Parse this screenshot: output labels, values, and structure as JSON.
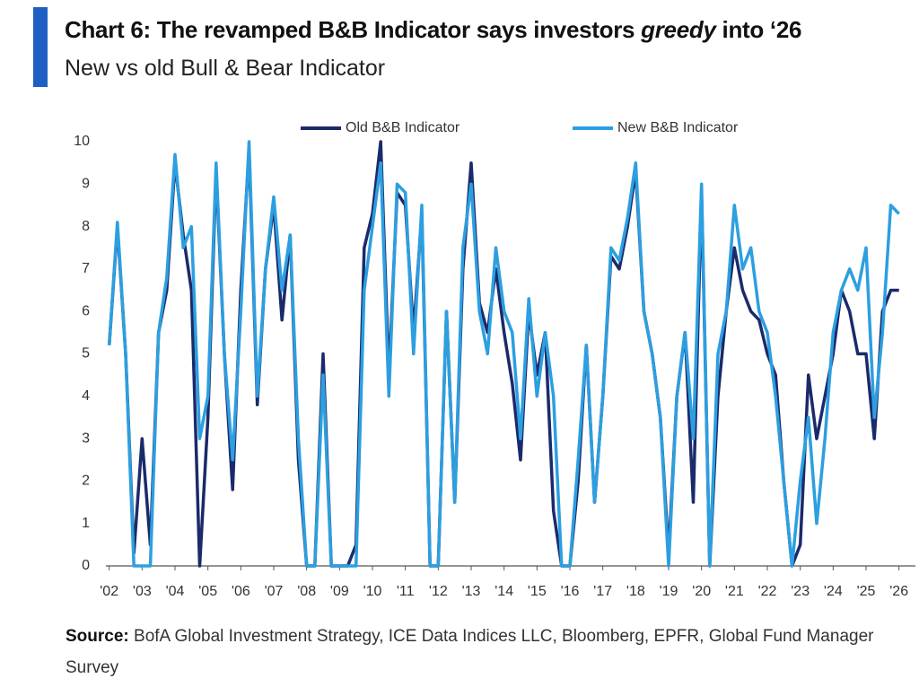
{
  "chart_data": {
    "type": "line",
    "title_parts": [
      "Chart 6: The revamped B&B Indicator says investors ",
      "greedy",
      " into ‘26"
    ],
    "subtitle": "New vs old Bull & Bear Indicator",
    "source_label": "Source:",
    "source": "BofA Global Investment Strategy, ICE Data Indices LLC, Bloomberg, EPFR, Global Fund Manager Survey",
    "x": [
      2002,
      2002.25,
      2002.5,
      2002.75,
      2003,
      2003.25,
      2003.5,
      2003.75,
      2004,
      2004.25,
      2004.5,
      2004.75,
      2005,
      2005.25,
      2005.5,
      2005.75,
      2006,
      2006.25,
      2006.5,
      2006.75,
      2007,
      2007.25,
      2007.5,
      2007.75,
      2008,
      2008.25,
      2008.5,
      2008.75,
      2009,
      2009.25,
      2009.5,
      2009.75,
      2010,
      2010.25,
      2010.5,
      2010.75,
      2011,
      2011.25,
      2011.5,
      2011.75,
      2012,
      2012.25,
      2012.5,
      2012.75,
      2013,
      2013.25,
      2013.5,
      2013.75,
      2014,
      2014.25,
      2014.5,
      2014.75,
      2015,
      2015.25,
      2015.5,
      2015.75,
      2016,
      2016.25,
      2016.5,
      2016.75,
      2017,
      2017.25,
      2017.5,
      2017.75,
      2018,
      2018.25,
      2018.5,
      2018.75,
      2019,
      2019.25,
      2019.5,
      2019.75,
      2020,
      2020.25,
      2020.5,
      2020.75,
      2021,
      2021.25,
      2021.5,
      2021.75,
      2022,
      2022.25,
      2022.5,
      2022.75,
      2023,
      2023.25,
      2023.5,
      2023.75,
      2024,
      2024.25,
      2024.5,
      2024.75,
      2025,
      2025.25,
      2025.5,
      2025.75,
      2026
    ],
    "series": [
      {
        "name": "Old B&B Indicator",
        "color": "#1b2a6b",
        "values": [
          5.2,
          8,
          5,
          0.3,
          3,
          0.5,
          5.5,
          6.5,
          9.5,
          7.8,
          6.5,
          0,
          3.5,
          9.3,
          5,
          1.8,
          6.5,
          9.8,
          3.8,
          7,
          8.5,
          5.8,
          7.8,
          2.5,
          0,
          0,
          5,
          0,
          0,
          0,
          0.5,
          7.5,
          8.3,
          10,
          4.5,
          8.8,
          8.5,
          5.5,
          8.3,
          0,
          0,
          6,
          1.5,
          7,
          9.5,
          6.2,
          5.5,
          7,
          5.5,
          4.3,
          2.5,
          6,
          4.5,
          5.5,
          1.3,
          0,
          0,
          2,
          5.2,
          1.5,
          4,
          7.3,
          7,
          8,
          9.3,
          6,
          5,
          3.5,
          0.3,
          4,
          5.5,
          1.5,
          8.8,
          0,
          4,
          6,
          7.5,
          6.5,
          6,
          5.8,
          5,
          4.5,
          2,
          0,
          0.5,
          4.5,
          3,
          4,
          5,
          6.5,
          6,
          5,
          5,
          3,
          6,
          6.5,
          6.5
        ]
      },
      {
        "name": "New B&B Indicator",
        "color": "#2c9fe0",
        "values": [
          5.2,
          8.1,
          5,
          0,
          0,
          0,
          5.5,
          6.8,
          9.7,
          7.5,
          8,
          3,
          4,
          9.5,
          5,
          2.5,
          6,
          10,
          4,
          7,
          8.7,
          6.5,
          7.8,
          3,
          0,
          0,
          4.5,
          0,
          0,
          0,
          0,
          6.5,
          8,
          9.5,
          4,
          9,
          8.8,
          5,
          8.5,
          0,
          0,
          6,
          1.5,
          7.5,
          9,
          6,
          5,
          7.5,
          6,
          5.5,
          3,
          6.3,
          4,
          5.5,
          4,
          0,
          0,
          2.5,
          5.2,
          1.5,
          4,
          7.5,
          7.2,
          8.2,
          9.5,
          6,
          5,
          3.5,
          0,
          4,
          5.5,
          3,
          9,
          0,
          5,
          6,
          8.5,
          7,
          7.5,
          6,
          5.5,
          4,
          2,
          0,
          2,
          3.5,
          1,
          3,
          5.5,
          6.5,
          7,
          6.5,
          7.5,
          3.5,
          5.5,
          8.5,
          8.3
        ]
      }
    ],
    "xlim": [
      2001.9,
      2026.5
    ],
    "xticks": [
      {
        "value": 2002,
        "label": "'02"
      },
      {
        "value": 2003,
        "label": "'03"
      },
      {
        "value": 2004,
        "label": "'04"
      },
      {
        "value": 2005,
        "label": "'05"
      },
      {
        "value": 2006,
        "label": "'06"
      },
      {
        "value": 2007,
        "label": "'07"
      },
      {
        "value": 2008,
        "label": "'08"
      },
      {
        "value": 2009,
        "label": "'09"
      },
      {
        "value": 2010,
        "label": "'10"
      },
      {
        "value": 2011,
        "label": "'11"
      },
      {
        "value": 2012,
        "label": "'12"
      },
      {
        "value": 2013,
        "label": "'13"
      },
      {
        "value": 2014,
        "label": "'14"
      },
      {
        "value": 2015,
        "label": "'15"
      },
      {
        "value": 2016,
        "label": "'16"
      },
      {
        "value": 2017,
        "label": "'17"
      },
      {
        "value": 2018,
        "label": "'18"
      },
      {
        "value": 2019,
        "label": "'19"
      },
      {
        "value": 2020,
        "label": "'20"
      },
      {
        "value": 2021,
        "label": "'21"
      },
      {
        "value": 2022,
        "label": "'22"
      },
      {
        "value": 2023,
        "label": "'23"
      },
      {
        "value": 2024,
        "label": "'24"
      },
      {
        "value": 2025,
        "label": "'25"
      },
      {
        "value": 2026,
        "label": "'26"
      }
    ],
    "ylim": [
      0,
      10
    ],
    "yticks": [
      0,
      1,
      2,
      3,
      4,
      5,
      6,
      7,
      8,
      9,
      10
    ],
    "grid": false,
    "legend": "top"
  }
}
